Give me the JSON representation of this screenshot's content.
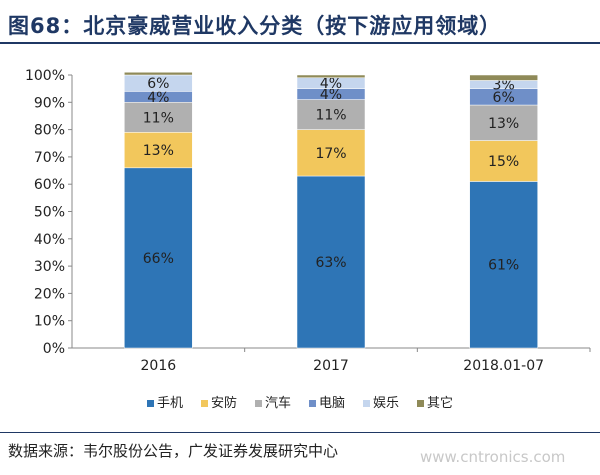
{
  "header": {
    "title": "图68：北京豪威营业收入分类（按下游应用领域）"
  },
  "footer": {
    "source": "数据来源：韦尔股份公告，广发证券发展研究中心",
    "watermark": "www.cntronics.com"
  },
  "colors": {
    "手机": "#2e75b6",
    "安防": "#f2c75c",
    "汽车": "#b0b0b0",
    "电脑": "#6f8fc8",
    "娱乐": "#c5d6ee",
    "其它": "#8f8a58"
  },
  "chart_data": {
    "type": "bar",
    "stacked": true,
    "categories": [
      "2016",
      "2017",
      "2018.01-07"
    ],
    "series": [
      {
        "name": "手机",
        "values": [
          66,
          63,
          61
        ]
      },
      {
        "name": "安防",
        "values": [
          13,
          17,
          15
        ]
      },
      {
        "name": "汽车",
        "values": [
          11,
          11,
          13
        ]
      },
      {
        "name": "电脑",
        "values": [
          4,
          4,
          6
        ]
      },
      {
        "name": "娱乐",
        "values": [
          6,
          4,
          3
        ]
      },
      {
        "name": "其它",
        "values": [
          1,
          1,
          2
        ]
      }
    ],
    "y_ticks": [
      "0%",
      "10%",
      "20%",
      "30%",
      "40%",
      "50%",
      "60%",
      "70%",
      "80%",
      "90%",
      "100%"
    ],
    "ylim": [
      0,
      100
    ],
    "legend_position": "bottom",
    "grid": false
  }
}
